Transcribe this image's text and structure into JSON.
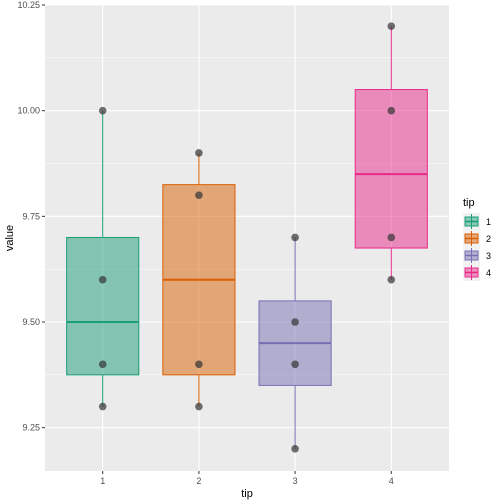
{
  "chart_data": {
    "type": "boxplot",
    "title": "",
    "xlabel": "tip",
    "ylabel": "value",
    "ylim": [
      9.1475,
      10.25
    ],
    "y_ticks": [
      "9.25",
      "9.50",
      "9.75",
      "10.00",
      "10.25"
    ],
    "y_tick_values": [
      9.25,
      9.5,
      9.75,
      10.0,
      10.25
    ],
    "categories": [
      "1",
      "2",
      "3",
      "4"
    ],
    "grid": true,
    "legend": {
      "title": "tip",
      "position": "right"
    },
    "series": [
      {
        "category": "1",
        "color": "#1b9e77",
        "min": 9.3,
        "q1": 9.375,
        "median": 9.5,
        "q3": 9.7,
        "max": 10.0,
        "points": [
          9.3,
          9.4,
          9.6,
          10.0
        ]
      },
      {
        "category": "2",
        "color": "#d95f02",
        "min": 9.3,
        "q1": 9.375,
        "median": 9.6,
        "q3": 9.825,
        "max": 9.9,
        "points": [
          9.3,
          9.4,
          9.8,
          9.9
        ]
      },
      {
        "category": "3",
        "color": "#7570b3",
        "min": 9.2,
        "q1": 9.35,
        "median": 9.45,
        "q3": 9.55,
        "max": 9.7,
        "points": [
          9.2,
          9.4,
          9.5,
          9.7
        ]
      },
      {
        "category": "4",
        "color": "#e7298a",
        "min": 9.6,
        "q1": 9.675,
        "median": 9.85,
        "q3": 10.05,
        "max": 10.2,
        "points": [
          9.6,
          9.7,
          10.0,
          10.2
        ]
      }
    ]
  }
}
